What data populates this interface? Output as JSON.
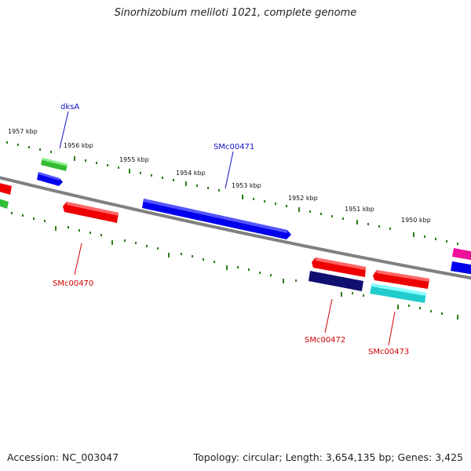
{
  "title": "Sinorhizobium meliloti 1021, complete genome",
  "footer": {
    "accession": "Accession: NC_003047",
    "summary": "Topology: circular; Length: 3,654,135 bp; Genes: 3,425"
  },
  "colors": {
    "backbone": "#808080",
    "tick": "#2e7d1a",
    "forward_label": "#1010c8",
    "reverse_label": "#d00000"
  },
  "ticks": [
    {
      "kbp": 1957,
      "label": "1957 kbp"
    },
    {
      "kbp": 1956,
      "label": "1956 kbp"
    },
    {
      "kbp": 1955,
      "label": "1955 kbp"
    },
    {
      "kbp": 1954,
      "label": "1954 kbp"
    },
    {
      "kbp": 1953,
      "label": "1953 kbp"
    },
    {
      "kbp": 1952,
      "label": "1952 kbp"
    },
    {
      "kbp": 1951,
      "label": "1951 kbp"
    },
    {
      "kbp": 1950,
      "label": "1950 kbp"
    }
  ],
  "genes": [
    {
      "name": "dksA",
      "color": "#0000ee"
    },
    {
      "name": "SMc00471",
      "color": "#0000ee"
    },
    {
      "name": "SMc00470",
      "color": "#ee0000"
    },
    {
      "name": "SMc00472",
      "color": "#ee0000"
    },
    {
      "name": "SMc00473",
      "color": "#ee0000"
    }
  ]
}
